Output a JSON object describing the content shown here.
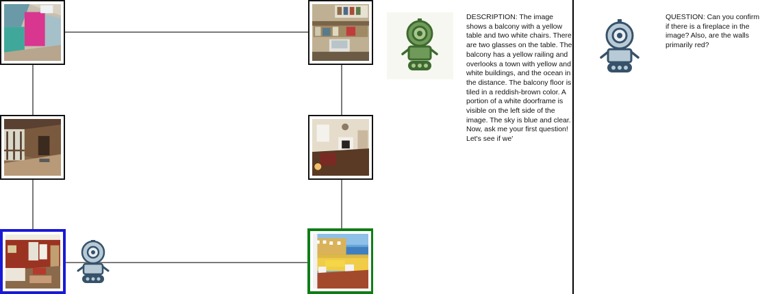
{
  "graph": {
    "nodes": [
      {
        "id": "top-left",
        "scene": "pink attic room",
        "role": "room"
      },
      {
        "id": "top-right",
        "scene": "office with shelves and computer",
        "role": "room"
      },
      {
        "id": "mid-left",
        "scene": "wooden porch",
        "role": "room"
      },
      {
        "id": "mid-right",
        "scene": "living room with fireplace",
        "role": "room"
      },
      {
        "id": "bottom-left",
        "scene": "red-walled living room",
        "role": "current"
      },
      {
        "id": "bottom-right",
        "scene": "balcony with yellow table",
        "role": "target"
      }
    ],
    "colors": {
      "current_border": "#1a1ad6",
      "target_border": "#0f7d16",
      "edge": "#7a7a7a"
    }
  },
  "dialogue": {
    "description": "DESCRIPTION: The image shows a balcony with a yellow table and two white chairs. There are two glasses on the table. The balcony has a yellow railing and overlooks a town with yellow and white buildings, and the ocean in the distance. The balcony floor is tiled in a reddish-brown color. A portion of a white doorframe is visible on the left side of the image. The sky is blue and clear. Now, ask me your first question! Let's see if we'",
    "question": "QUESTION: Can you confirm if there is a fireplace in the image? Also, are the walls primarily red?"
  },
  "icons": {
    "describer_robot": "robot-icon",
    "questioner_robot": "robot-icon",
    "navigator_robot": "robot-icon"
  }
}
